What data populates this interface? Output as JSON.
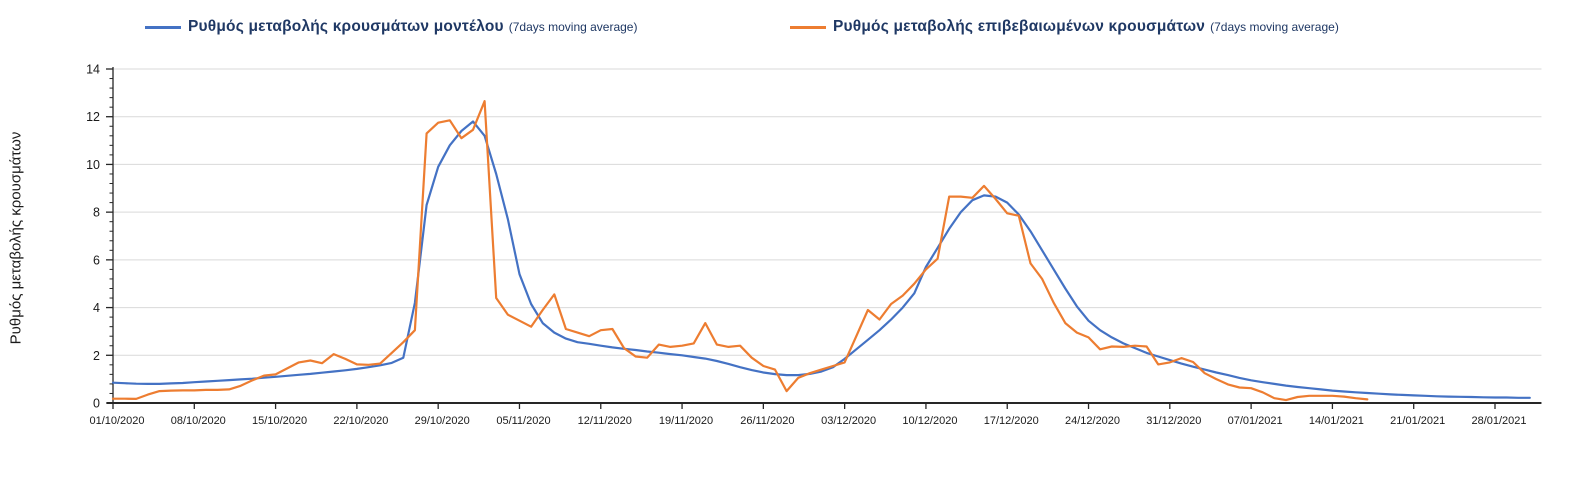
{
  "legend": {
    "items": [
      {
        "label": "Ρυθμός μεταβολής κρουσμάτων μοντέλου",
        "suffix": "(7days moving average)",
        "color": "#4472C4"
      },
      {
        "label": "Ρυθμός μεταβολής επιβεβαιωμένων κρουσμάτων",
        "suffix": "(7days moving average)",
        "color": "#ED7D31"
      }
    ]
  },
  "y_axis_title": "Ρυθμός μεταβολής κρουσμάτων",
  "chart_data": {
    "type": "line",
    "title": "",
    "xlabel": "",
    "ylabel": "Ρυθμός μεταβολής κρουσμάτων",
    "ylim": [
      0,
      14
    ],
    "y_tick_step": 2,
    "grid": "horizontal",
    "legend_position": "top",
    "x_unit": "day",
    "x_start_date": "01/10/2020",
    "x_tick_interval_days": 7,
    "x_tick_labels": [
      "01/10/2020",
      "08/10/2020",
      "15/10/2020",
      "22/10/2020",
      "29/10/2020",
      "05/11/2020",
      "12/11/2020",
      "19/11/2020",
      "26/11/2020",
      "03/12/2020",
      "10/12/2020",
      "17/12/2020",
      "24/12/2020",
      "31/12/2020",
      "07/01/2021",
      "14/01/2021",
      "21/01/2021",
      "28/01/2021"
    ],
    "series": [
      {
        "id": "model",
        "name": "Ρυθμός μεταβολής κρουσμάτων μοντέλου (7days moving average)",
        "color": "#4472C4",
        "start_day": 0,
        "values": [
          0.85,
          0.83,
          0.81,
          0.8,
          0.8,
          0.82,
          0.84,
          0.87,
          0.9,
          0.93,
          0.96,
          0.99,
          1.02,
          1.06,
          1.1,
          1.14,
          1.18,
          1.22,
          1.27,
          1.32,
          1.37,
          1.43,
          1.5,
          1.58,
          1.68,
          1.9,
          4.2,
          8.3,
          9.9,
          10.8,
          11.4,
          11.8,
          11.2,
          9.6,
          7.7,
          5.4,
          4.15,
          3.35,
          2.95,
          2.7,
          2.55,
          2.48,
          2.4,
          2.33,
          2.27,
          2.22,
          2.16,
          2.11,
          2.05,
          2.0,
          1.93,
          1.86,
          1.76,
          1.64,
          1.5,
          1.38,
          1.28,
          1.21,
          1.17,
          1.17,
          1.22,
          1.32,
          1.5,
          1.85,
          2.25,
          2.65,
          3.05,
          3.5,
          4.0,
          4.6,
          5.7,
          6.5,
          7.3,
          8.0,
          8.5,
          8.7,
          8.65,
          8.4,
          7.9,
          7.2,
          6.4,
          5.6,
          4.8,
          4.05,
          3.45,
          3.05,
          2.75,
          2.5,
          2.3,
          2.1,
          1.95,
          1.8,
          1.65,
          1.52,
          1.4,
          1.28,
          1.17,
          1.05,
          0.95,
          0.87,
          0.8,
          0.73,
          0.67,
          0.62,
          0.57,
          0.52,
          0.48,
          0.45,
          0.42,
          0.39,
          0.36,
          0.34,
          0.32,
          0.3,
          0.28,
          0.27,
          0.26,
          0.25,
          0.24,
          0.23,
          0.23,
          0.22,
          0.22
        ]
      },
      {
        "id": "confirmed",
        "name": "Ρυθμός μεταβολής επιβεβαιωμένων κρουσμάτων (7days moving average)",
        "color": "#ED7D31",
        "start_day": 0,
        "values": [
          0.18,
          0.18,
          0.17,
          0.35,
          0.5,
          0.52,
          0.53,
          0.53,
          0.55,
          0.55,
          0.57,
          0.72,
          0.95,
          1.15,
          1.2,
          1.45,
          1.7,
          1.78,
          1.67,
          2.05,
          1.85,
          1.62,
          1.6,
          1.65,
          2.1,
          2.55,
          3.05,
          11.3,
          11.75,
          11.85,
          11.1,
          11.45,
          12.65,
          4.4,
          3.7,
          3.45,
          3.2,
          3.9,
          4.55,
          3.1,
          2.95,
          2.8,
          3.05,
          3.1,
          2.3,
          1.95,
          1.9,
          2.45,
          2.35,
          2.4,
          2.5,
          3.35,
          2.45,
          2.35,
          2.4,
          1.9,
          1.55,
          1.4,
          0.5,
          1.05,
          1.25,
          1.4,
          1.55,
          1.7,
          2.8,
          3.9,
          3.5,
          4.15,
          4.5,
          5.0,
          5.6,
          6.05,
          8.65,
          8.65,
          8.6,
          9.1,
          8.55,
          7.95,
          7.85,
          5.85,
          5.2,
          4.2,
          3.35,
          2.95,
          2.75,
          2.25,
          2.37,
          2.35,
          2.4,
          2.37,
          1.62,
          1.7,
          1.88,
          1.72,
          1.25,
          1.0,
          0.78,
          0.65,
          0.62,
          0.45,
          0.2,
          0.12,
          0.25,
          0.3,
          0.3,
          0.3,
          0.27,
          0.2,
          0.15
        ]
      }
    ]
  }
}
